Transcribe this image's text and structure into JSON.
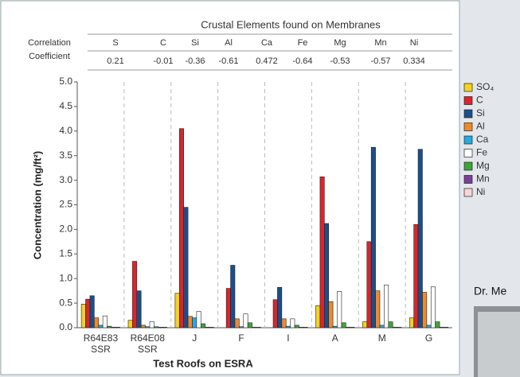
{
  "chart_data": {
    "type": "bar",
    "title": "Crustal Elements found on Membranes",
    "table": {
      "row_label": [
        "Correlation",
        "Coefficient"
      ],
      "elements": [
        "S",
        "C",
        "Si",
        "Al",
        "Ca",
        "Fe",
        "Mg",
        "Mn",
        "Ni"
      ],
      "coefficients": [
        0.21,
        -0.01,
        -0.36,
        -0.61,
        0.472,
        -0.64,
        -0.53,
        -0.57,
        0.334
      ]
    },
    "y_label": "Concentration (mg/ft²)",
    "x_label": "Test Roofs on ESRA",
    "categories": [
      "R64E83\nSSR",
      "R64E08\nSSR",
      "J",
      "F",
      "I",
      "A",
      "M",
      "G"
    ],
    "ylim": [
      0,
      5
    ],
    "yticks": [
      {
        "value": 0,
        "label": "0.0"
      },
      {
        "value": 0.5,
        "label": "0.5"
      },
      {
        "value": 1,
        "label": "1.0"
      },
      {
        "value": 1.5,
        "label": "1.5"
      },
      {
        "value": 2,
        "label": "2.0"
      },
      {
        "value": 2.5,
        "label": "2.5"
      },
      {
        "value": 3,
        "label": "3.0"
      },
      {
        "value": 3.5,
        "label": "3.5"
      },
      {
        "value": 4,
        "label": "4.0"
      },
      {
        "value": 4.5,
        "label": "4.5"
      },
      {
        "value": 5,
        "label": "5.0"
      }
    ],
    "grid": true,
    "legend": "right",
    "series": [
      {
        "name": "SO₄",
        "color": "#f4d21f",
        "values": [
          0.48,
          0.15,
          0.7,
          0,
          0,
          0.45,
          0.12,
          0.2
        ]
      },
      {
        "name": "C",
        "color": "#d7262d",
        "values": [
          0.58,
          1.35,
          4.05,
          0.8,
          0.57,
          3.07,
          1.75,
          2.1
        ]
      },
      {
        "name": "Si",
        "color": "#1a4f8b",
        "values": [
          0.65,
          0.75,
          2.45,
          1.27,
          0.82,
          2.12,
          3.67,
          3.63
        ]
      },
      {
        "name": "Al",
        "color": "#ee8a2e",
        "values": [
          0.2,
          0.05,
          0.23,
          0.18,
          0.18,
          0.53,
          0.75,
          0.72
        ]
      },
      {
        "name": "Ca",
        "color": "#27a9e1",
        "values": [
          0.05,
          0.02,
          0.2,
          0.02,
          0.03,
          0.03,
          0.05,
          0.05
        ]
      },
      {
        "name": "Fe",
        "color": "#ffffff",
        "values": [
          0.24,
          0.12,
          0.33,
          0.28,
          0.18,
          0.74,
          0.87,
          0.83
        ]
      },
      {
        "name": "Mg",
        "color": "#3fa53a",
        "values": [
          0.03,
          0.02,
          0.08,
          0.1,
          0.05,
          0.1,
          0.12,
          0.12
        ]
      },
      {
        "name": "Mn",
        "color": "#7b3f99",
        "values": [
          0.01,
          0.01,
          0.01,
          0.01,
          0.01,
          0.01,
          0.01,
          0.01
        ]
      },
      {
        "name": "Ni",
        "color": "#f7d6d8",
        "values": [
          0.01,
          0.01,
          0.01,
          0.01,
          0.01,
          0.01,
          0.01,
          0.01
        ]
      }
    ]
  },
  "side_caption": "Dr. Me"
}
